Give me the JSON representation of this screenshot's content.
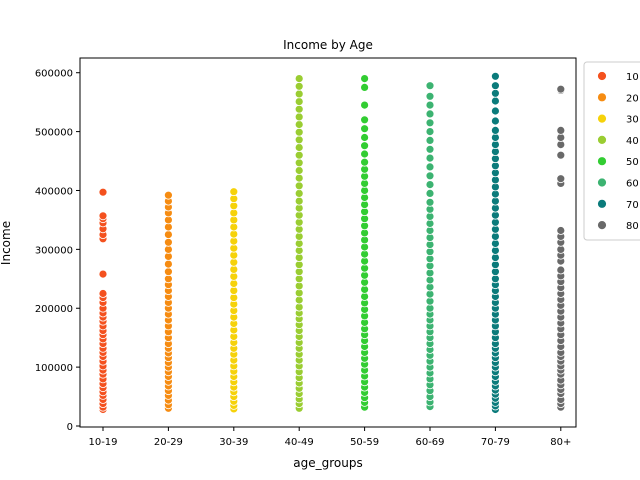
{
  "chart_data": {
    "type": "scatter",
    "title": "Income by Age",
    "xlabel": "age_groups",
    "ylabel": "Income",
    "categories": [
      "10-19",
      "20-29",
      "30-39",
      "40-49",
      "50-59",
      "60-69",
      "70-79",
      "80+"
    ],
    "ylim": [
      0,
      625000
    ],
    "yticks": [
      0,
      100000,
      200000,
      300000,
      400000,
      500000,
      600000
    ],
    "ytick_labels": [
      "0",
      "100000",
      "200000",
      "300000",
      "400000",
      "500000",
      "600000"
    ],
    "grid": false,
    "legend_position": "right, outside plot (clipped)",
    "legend": [
      {
        "label": "10",
        "color": "#f4511e"
      },
      {
        "label": "20",
        "color": "#f68c12"
      },
      {
        "label": "30",
        "color": "#f6d20a"
      },
      {
        "label": "40",
        "color": "#9acd32"
      },
      {
        "label": "50",
        "color": "#32cd32"
      },
      {
        "label": "60",
        "color": "#3cb371"
      },
      {
        "label": "70",
        "color": "#0b7b7b"
      },
      {
        "label": "80",
        "color": "#696969"
      }
    ],
    "series": [
      {
        "category": "10-19",
        "color": "#f4511e",
        "values": [
          28000,
          32000,
          38000,
          45000,
          52000,
          58000,
          65000,
          72000,
          80000,
          88000,
          95000,
          102000,
          110000,
          118000,
          125000,
          132000,
          140000,
          148000,
          155000,
          162000,
          170000,
          178000,
          185000,
          192000,
          200000,
          210000,
          218000,
          225000,
          258000,
          318000,
          325000,
          335000,
          345000,
          352000,
          357000,
          397000
        ]
      },
      {
        "category": "20-29",
        "color": "#f68c12",
        "values": [
          30000,
          36000,
          44000,
          52000,
          60000,
          68000,
          76000,
          84000,
          92000,
          100000,
          108000,
          116000,
          124000,
          132000,
          140000,
          150000,
          160000,
          170000,
          180000,
          190000,
          200000,
          210000,
          220000,
          230000,
          240000,
          250000,
          262000,
          275000,
          288000,
          300000,
          312000,
          325000,
          338000,
          350000,
          362000,
          372000,
          382000,
          392000
        ]
      },
      {
        "category": "30-39",
        "color": "#f6d20a",
        "values": [
          29000,
          35000,
          42000,
          50000,
          58000,
          66000,
          75000,
          84000,
          93000,
          102000,
          112000,
          122000,
          132000,
          142000,
          152000,
          163000,
          174000,
          185000,
          196000,
          207000,
          218000,
          230000,
          242000,
          254000,
          266000,
          278000,
          290000,
          302000,
          314000,
          326000,
          338000,
          350000,
          362000,
          374000,
          386000,
          398000
        ]
      },
      {
        "category": "40-49",
        "color": "#9acd32",
        "values": [
          30000,
          38000,
          46000,
          55000,
          64000,
          73000,
          82000,
          92000,
          102000,
          112000,
          122000,
          132000,
          142000,
          152000,
          162000,
          172000,
          182000,
          192000,
          202000,
          214000,
          226000,
          238000,
          250000,
          262000,
          274000,
          286000,
          298000,
          310000,
          322000,
          334000,
          346000,
          358000,
          370000,
          382000,
          395000,
          408000,
          421000,
          434000,
          447000,
          460000,
          473000,
          486000,
          499000,
          512000,
          525000,
          538000,
          551000,
          564000,
          577000,
          590000
        ]
      },
      {
        "category": "50-59",
        "color": "#32cd32",
        "values": [
          32000,
          40000,
          48000,
          57000,
          66000,
          75000,
          85000,
          95000,
          105000,
          115000,
          125000,
          135000,
          145000,
          155000,
          165000,
          176000,
          187000,
          198000,
          209000,
          220000,
          232000,
          244000,
          256000,
          268000,
          280000,
          292000,
          304000,
          316000,
          328000,
          340000,
          352000,
          364000,
          376000,
          388000,
          400000,
          412000,
          424000,
          436000,
          448000,
          462000,
          476000,
          490000,
          505000,
          520000,
          545000,
          575000,
          590000
        ]
      },
      {
        "category": "60-69",
        "color": "#3cb371",
        "values": [
          33000,
          41000,
          50000,
          60000,
          70000,
          80000,
          90000,
          100000,
          110000,
          120000,
          130000,
          140000,
          150000,
          160000,
          170000,
          180000,
          190000,
          200000,
          212000,
          224000,
          236000,
          248000,
          260000,
          272000,
          284000,
          296000,
          308000,
          320000,
          332000,
          344000,
          356000,
          368000,
          380000,
          395000,
          410000,
          425000,
          440000,
          455000,
          470000,
          485000,
          500000,
          515000,
          530000,
          545000,
          560000,
          578000
        ]
      },
      {
        "category": "70-79",
        "color": "#0b7b7b",
        "values": [
          28000,
          34000,
          40000,
          47000,
          54000,
          61000,
          68000,
          76000,
          84000,
          92000,
          100000,
          108000,
          116000,
          124000,
          132000,
          140000,
          150000,
          160000,
          170000,
          180000,
          190000,
          200000,
          210000,
          220000,
          230000,
          240000,
          250000,
          262000,
          274000,
          286000,
          298000,
          310000,
          322000,
          334000,
          346000,
          358000,
          370000,
          382000,
          394000,
          406000,
          418000,
          430000,
          442000,
          454000,
          466000,
          478000,
          490000,
          502000,
          518000,
          535000,
          552000,
          565000,
          578000,
          594000
        ]
      },
      {
        "category": "80+",
        "color": "#696969",
        "values": [
          32000,
          38000,
          45000,
          55000,
          62000,
          70000,
          78000,
          88000,
          95000,
          102000,
          110000,
          118000,
          125000,
          135000,
          145000,
          155000,
          165000,
          175000,
          185000,
          195000,
          205000,
          215000,
          225000,
          235000,
          245000,
          255000,
          265000,
          280000,
          290000,
          300000,
          312000,
          322000,
          332000,
          412000,
          420000,
          460000,
          478000,
          490000,
          502000,
          570000,
          572000
        ]
      }
    ]
  }
}
